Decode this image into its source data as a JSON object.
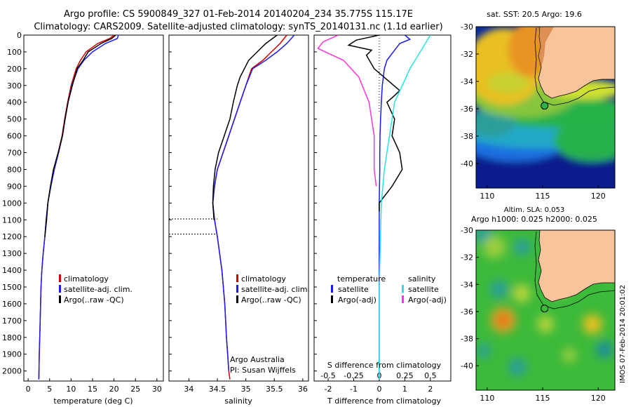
{
  "header": {
    "line1": "Argo profile: CS 5900849_327 01-Feb-2014 20140204_234 35.775S 115.17E",
    "line2": "Climatology: CARS2009. Satellite-adjusted climatology: synTS_20140131.nc (1.1d earlier)"
  },
  "colors": {
    "climatology": "#d40000",
    "satellite": "#1a1aff",
    "argo": "#000000",
    "sat_salinity": "#22e6e6",
    "argo_salinity": "#ff33dd",
    "land": "#f8c49c"
  },
  "chart_data": [
    {
      "type": "line",
      "id": "temperature",
      "xlabel": "temperature (deg C)",
      "xlim": [
        -1,
        31.5
      ],
      "ylim": [
        2060,
        0
      ],
      "xticks": [
        "0",
        "5",
        "10",
        "15",
        "20",
        "25",
        "30"
      ],
      "yticks": [
        "0",
        "100",
        "200",
        "300",
        "400",
        "500",
        "600",
        "700",
        "800",
        "900",
        "1000",
        "1100",
        "1200",
        "1300",
        "1400",
        "1500",
        "1600",
        "1700",
        "1800",
        "1900",
        "2000"
      ],
      "legend": [
        "climatology",
        "satellite-adj. clim.",
        "Argo(..raw -QC)"
      ],
      "legend_placement": "lower-right",
      "series": [
        {
          "name": "climatology",
          "x": [
            20.0,
            19.0,
            16.2,
            13.5,
            12.2,
            11.2,
            10.0,
            9.2,
            8.5,
            7.9,
            7.0,
            6.0,
            5.2,
            4.6,
            4.2,
            3.9,
            3.5,
            3.2,
            3.0,
            2.9,
            2.8,
            2.7,
            2.6,
            2.5
          ],
          "y": [
            0,
            20,
            50,
            100,
            150,
            200,
            300,
            400,
            500,
            600,
            700,
            800,
            900,
            1000,
            1100,
            1200,
            1300,
            1400,
            1500,
            1600,
            1700,
            1800,
            1900,
            2050
          ]
        },
        {
          "name": "satellite-adj. clim.",
          "x": [
            21.0,
            20.8,
            18.0,
            15.0,
            13.0,
            11.6,
            10.2,
            9.3,
            8.6,
            8.0,
            7.1,
            6.1,
            5.3,
            4.6,
            4.2,
            3.9,
            3.5,
            3.2,
            3.0,
            2.9,
            2.8,
            2.7,
            2.6,
            2.5
          ],
          "y": [
            0,
            20,
            50,
            100,
            150,
            200,
            300,
            400,
            500,
            600,
            700,
            800,
            900,
            1000,
            1100,
            1200,
            1300,
            1400,
            1500,
            1600,
            1700,
            1800,
            1900,
            2050
          ]
        },
        {
          "name": "Argo(..raw -QC)",
          "x": [
            20.4,
            19.5,
            17.0,
            14.0,
            12.8,
            11.4,
            10.3,
            9.3,
            8.6,
            8.0,
            7.0,
            5.9,
            5.2,
            4.6,
            4.3,
            3.9
          ],
          "y": [
            0,
            20,
            50,
            100,
            150,
            200,
            300,
            400,
            500,
            600,
            700,
            800,
            900,
            1000,
            1100,
            1200
          ]
        }
      ]
    },
    {
      "type": "line",
      "id": "salinity",
      "xlabel": "salinity",
      "xlim": [
        33.65,
        36.1
      ],
      "ylim": [
        2060,
        0
      ],
      "xticks": [
        "34",
        "34.5",
        "35",
        "35.5",
        "36"
      ],
      "legend": [
        "climatology",
        "satellite-adj. clim.",
        "Argo(..raw -QC)"
      ],
      "legend_placement": "lower-right",
      "annotations": [
        "Argo Australia",
        "PI: Susan Wijffels"
      ],
      "qc_flag_depths": [
        1095,
        1185
      ],
      "series": [
        {
          "name": "climatology",
          "x": [
            35.72,
            35.6,
            35.45,
            35.3,
            35.1,
            35.0,
            34.9,
            34.8,
            34.7,
            34.6,
            34.5,
            34.45,
            34.42,
            34.45,
            34.5,
            34.58,
            34.63,
            34.66,
            34.68,
            34.7,
            34.72
          ],
          "y": [
            0,
            50,
            100,
            150,
            200,
            300,
            400,
            500,
            600,
            700,
            800,
            900,
            1000,
            1100,
            1200,
            1400,
            1600,
            1800,
            1900,
            2000,
            2050
          ]
        },
        {
          "name": "satellite-adj. clim.",
          "x": [
            35.85,
            35.72,
            35.55,
            35.35,
            35.12,
            35.0,
            34.9,
            34.8,
            34.7,
            34.6,
            34.5,
            34.45,
            34.42,
            34.45,
            34.5,
            34.58,
            34.63,
            34.66,
            34.68,
            34.7
          ],
          "y": [
            0,
            50,
            100,
            150,
            200,
            300,
            400,
            500,
            600,
            700,
            800,
            900,
            1000,
            1100,
            1200,
            1400,
            1600,
            1800,
            1900,
            2000
          ]
        },
        {
          "name": "Argo(..raw -QC)",
          "x": [
            35.55,
            35.35,
            35.2,
            35.05,
            34.9,
            34.85,
            34.78,
            34.72,
            34.62,
            34.52,
            34.46,
            34.43,
            34.42,
            34.44
          ],
          "y": [
            0,
            50,
            100,
            150,
            250,
            300,
            400,
            500,
            600,
            700,
            800,
            900,
            1000,
            1100
          ]
        }
      ]
    },
    {
      "type": "line",
      "id": "difference",
      "xlabel": "T difference from climatology",
      "xlabel_top": "S difference from climatology",
      "xlim": [
        -2.55,
        2.8
      ],
      "ylim": [
        2060,
        0
      ],
      "xticks": [
        "-2",
        "-1",
        "0",
        "1",
        "2"
      ],
      "xticks_top": [
        "-0.5",
        "-0.25",
        "0",
        "0.25",
        "0.5"
      ],
      "legend_t_title": "temperature",
      "legend_s_title": "salinity",
      "legend_t": [
        "satellite",
        "Argo(-adj)"
      ],
      "legend_s": [
        "satellite",
        "Argo(-adj)"
      ],
      "legend_placement": "lower-center",
      "series": [
        {
          "name": "T satellite",
          "x": [
            1.0,
            1.2,
            0.8,
            0.55,
            0.3,
            0.2,
            0.12,
            0.08,
            0.05,
            0.03,
            0.02,
            0.02,
            0.01,
            0.0,
            0.0,
            0.0,
            0.0
          ],
          "y": [
            0,
            25,
            50,
            100,
            150,
            200,
            300,
            400,
            500,
            600,
            700,
            800,
            900,
            1000,
            1200,
            1600,
            2050
          ]
        },
        {
          "name": "T Argo(-adj)",
          "x": [
            0.0,
            -0.9,
            -1.2,
            -0.3,
            -0.5,
            -0.2,
            0.8,
            0.6,
            0.3,
            0.6,
            0.5,
            0.8,
            0.9,
            0.5,
            0.0,
            0.0
          ],
          "y": [
            0,
            30,
            60,
            90,
            120,
            200,
            330,
            360,
            400,
            500,
            600,
            700,
            800,
            900,
            1000,
            1050
          ]
        },
        {
          "name": "S satellite",
          "x": [
            0.5,
            0.45,
            0.4,
            0.3,
            0.15,
            0.1,
            0.05,
            0.02,
            0.0,
            0.0
          ],
          "y": [
            0,
            50,
            100,
            200,
            400,
            600,
            800,
            1000,
            1500,
            2050
          ]
        },
        {
          "name": "S Argo(-adj)",
          "x": [
            -0.4,
            -0.55,
            -0.6,
            -0.35,
            -0.2,
            -0.1,
            -0.05,
            -0.05,
            -0.03
          ],
          "y": [
            0,
            40,
            80,
            150,
            250,
            400,
            600,
            800,
            900
          ]
        }
      ]
    },
    {
      "type": "heatmap",
      "id": "map-sst",
      "title": "sat. SST: 20.5 Argo: 19.6",
      "xlim": [
        109,
        121.5
      ],
      "ylim": [
        -41.8,
        -30
      ],
      "xticks": [
        "110",
        "115",
        "120"
      ],
      "yticks": [
        "-30",
        "-32",
        "-34",
        "-36",
        "-38",
        "-40"
      ],
      "argo_position": [
        115.17,
        -35.775
      ]
    },
    {
      "type": "heatmap",
      "id": "map-sla",
      "title": "Altim. SLA: 0.053",
      "subtitle": "Argo h1000: 0.025 h2000: 0.025",
      "xlim": [
        109,
        121.5
      ],
      "ylim": [
        -41.8,
        -30
      ],
      "xticks": [
        "110",
        "115",
        "120"
      ],
      "yticks": [
        "-30",
        "-32",
        "-34",
        "-36",
        "-38",
        "-40"
      ],
      "argo_position": [
        115.17,
        -35.775
      ]
    }
  ],
  "footer": {
    "stamp": "IMOS 07-Feb-2014 20:01:02"
  }
}
